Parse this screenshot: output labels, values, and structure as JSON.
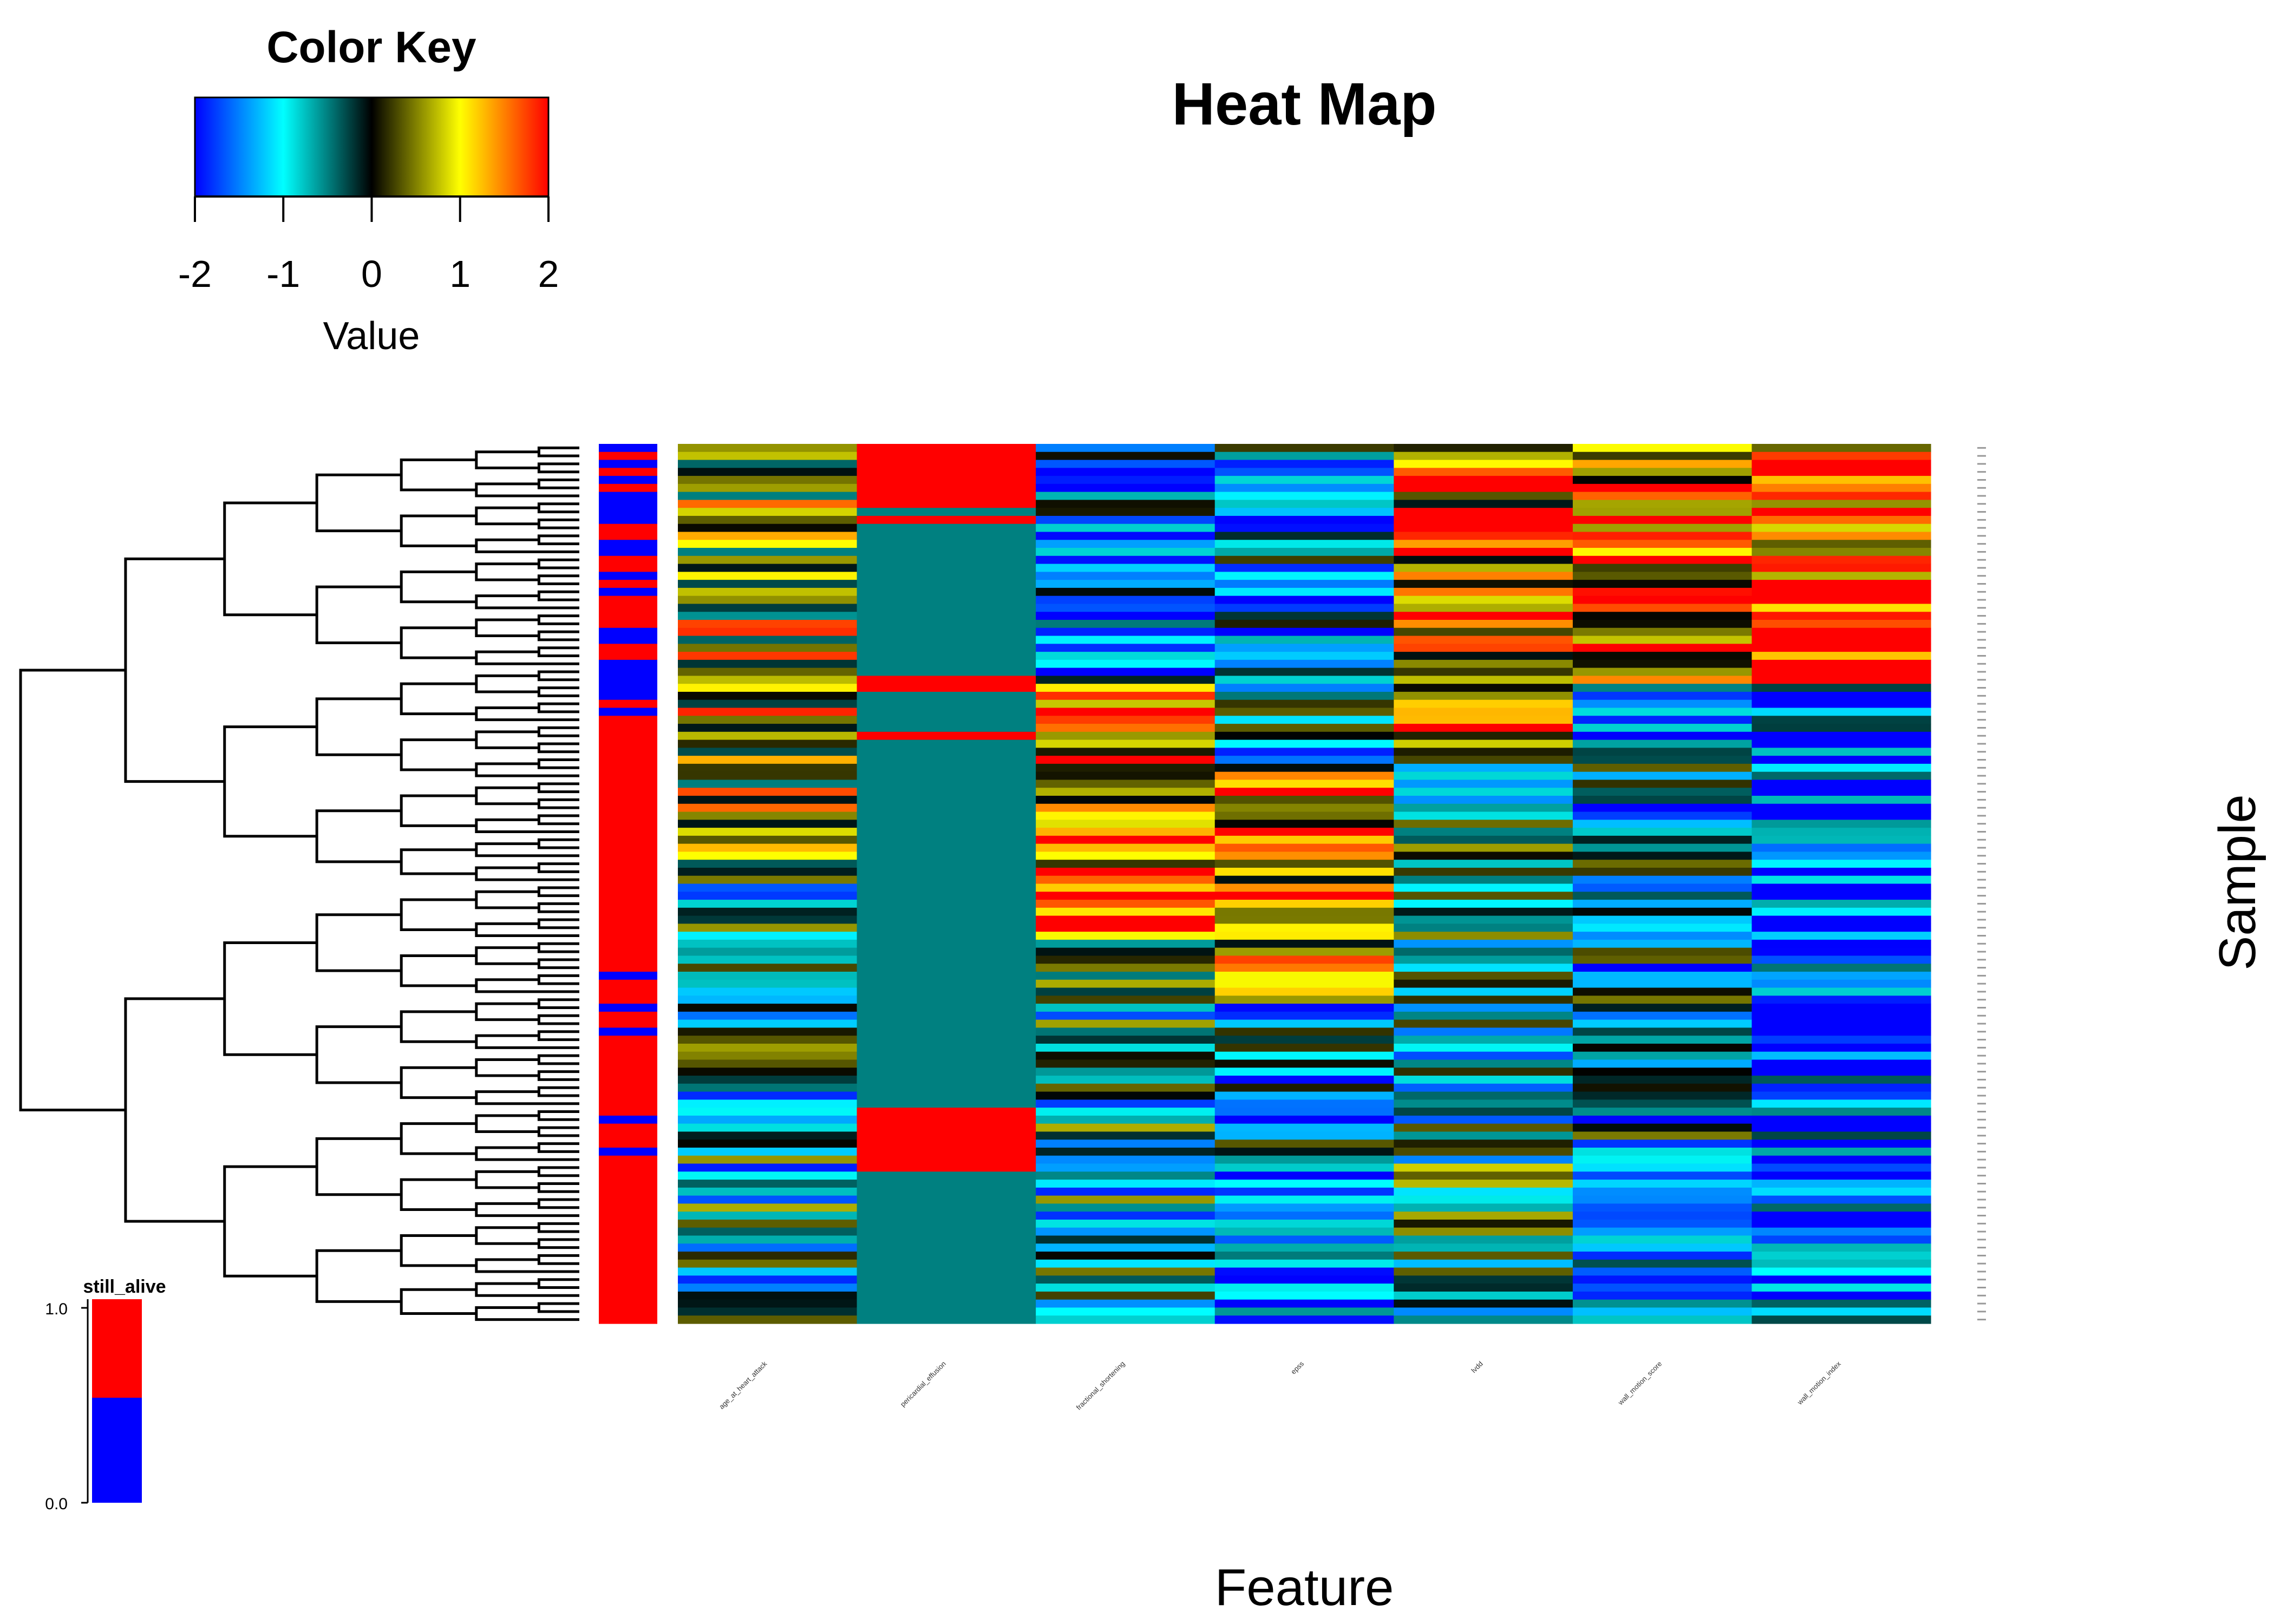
{
  "chart_data": {
    "type": "heatmap",
    "title": "Heat Map",
    "xlabel": "Feature",
    "ylabel": "Sample",
    "features": [
      "age_at_heart_attack",
      "pericardial_effusion",
      "fractional_shortening",
      "epss",
      "lvdd",
      "wall_motion_score",
      "wall_motion_index"
    ],
    "row_count": 110,
    "color_key": {
      "title": "Color Key",
      "xlabel": "Value",
      "range": [
        -2,
        2
      ],
      "ticks": [
        "-2",
        "-1",
        "0",
        "1",
        "2"
      ],
      "colors": [
        "#0000ff",
        "#0080ff",
        "#00ffff",
        "#008080",
        "#000000",
        "#808000",
        "#ffff00",
        "#ff8000",
        "#ff0000"
      ]
    },
    "side_annotation": {
      "name": "still_alive",
      "ticks": [
        "1.0",
        "0.0"
      ],
      "colors": {
        "1": "#ff0000",
        "0": "#0000ff"
      },
      "values": [
        0,
        1,
        0,
        1,
        0,
        1,
        0,
        0,
        0,
        0,
        1,
        1,
        0,
        0,
        1,
        1,
        0,
        1,
        0,
        1,
        1,
        1,
        1,
        0,
        0,
        1,
        1,
        0,
        0,
        0,
        0,
        0,
        1,
        0,
        1,
        1,
        1,
        1,
        1,
        1,
        1,
        1,
        1,
        1,
        1,
        1,
        1,
        1,
        1,
        1,
        1,
        1,
        1,
        1,
        1,
        1,
        1,
        1,
        1,
        1,
        1,
        1,
        1,
        1,
        1,
        1,
        0,
        1,
        1,
        1,
        0,
        1,
        1,
        0,
        1,
        1,
        1,
        1,
        1,
        1,
        1,
        1,
        1,
        1,
        0,
        1,
        1,
        1,
        0,
        1,
        1,
        1,
        1,
        1,
        1,
        1,
        1,
        1,
        1,
        1,
        1,
        1,
        1,
        1,
        1,
        1,
        1,
        1,
        1,
        1
      ]
    },
    "pericardial_effusion_values": [
      1,
      1,
      1,
      1,
      1,
      1,
      1,
      1,
      0,
      1,
      0,
      0,
      0,
      0,
      0,
      0,
      0,
      0,
      0,
      0,
      0,
      0,
      0,
      0,
      0,
      0,
      0,
      0,
      0,
      1,
      1,
      0,
      0,
      0,
      0,
      0,
      1,
      0,
      0,
      0,
      0,
      0,
      0,
      0,
      0,
      0,
      0,
      0,
      0,
      0,
      0,
      0,
      0,
      0,
      0,
      0,
      0,
      0,
      0,
      0,
      0,
      0,
      0,
      0,
      0,
      0,
      0,
      0,
      0,
      0,
      0,
      0,
      0,
      0,
      0,
      0,
      0,
      0,
      0,
      0,
      0,
      0,
      0,
      1,
      1,
      1,
      1,
      1,
      1,
      1,
      1,
      0,
      0,
      0,
      0,
      0,
      0,
      0,
      0,
      0,
      0,
      0,
      0,
      0,
      0,
      0,
      0,
      0,
      0,
      0
    ]
  }
}
